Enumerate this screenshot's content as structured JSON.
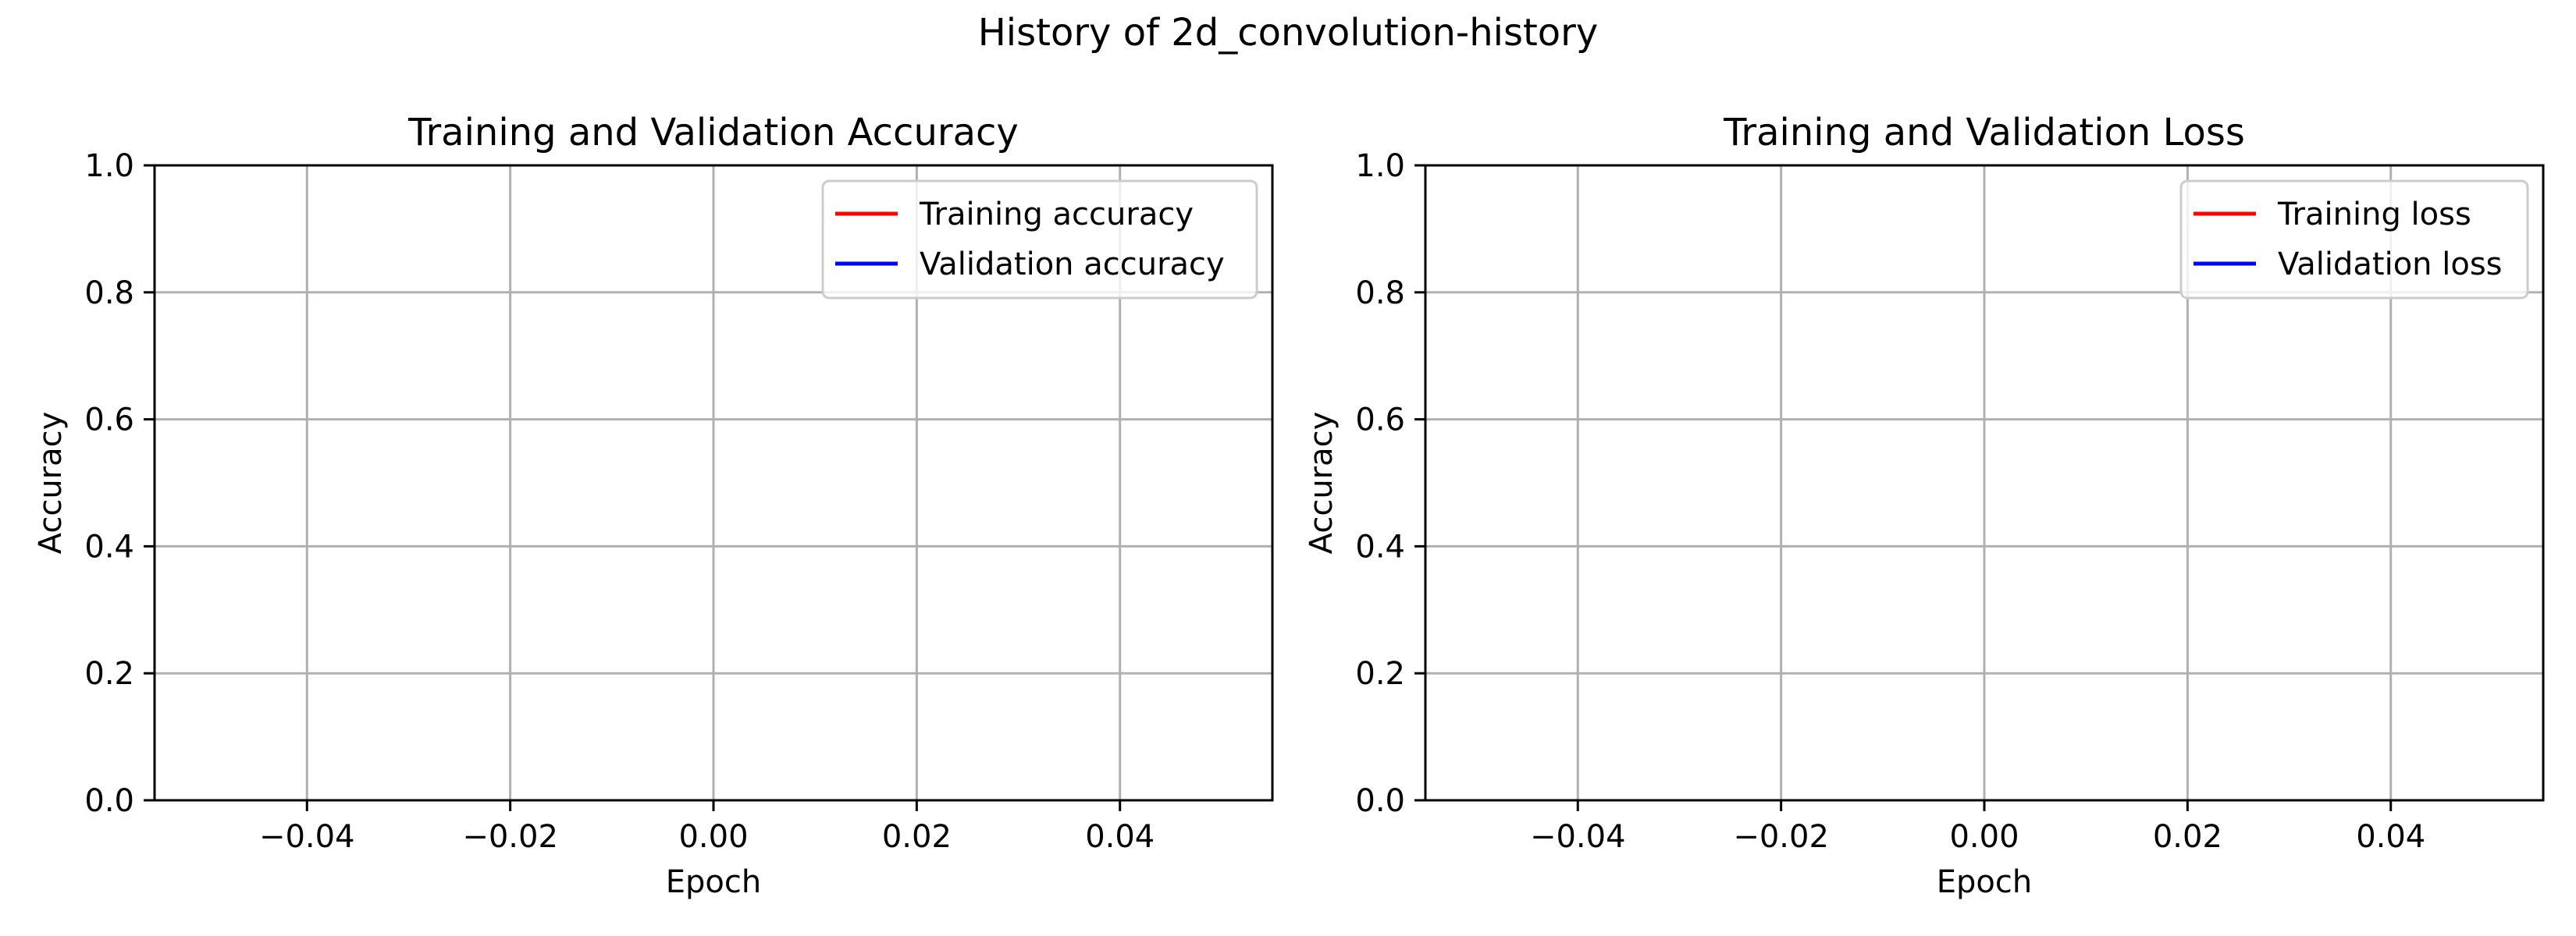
{
  "figure": {
    "suptitle": "History of 2d_convolution-history"
  },
  "chart_data": [
    {
      "type": "line",
      "title": "Training and Validation Accuracy",
      "xlabel": "Epoch",
      "ylabel": "Accuracy",
      "xlim": [
        -0.055,
        0.055
      ],
      "ylim": [
        0.0,
        1.0
      ],
      "xticks": [
        -0.04,
        -0.02,
        0.0,
        0.02,
        0.04
      ],
      "xtick_labels": [
        "−0.04",
        "−0.02",
        "0.00",
        "0.02",
        "0.04"
      ],
      "yticks": [
        0.0,
        0.2,
        0.4,
        0.6,
        0.8,
        1.0
      ],
      "ytick_labels": [
        "0.0",
        "0.2",
        "0.4",
        "0.6",
        "0.8",
        "1.0"
      ],
      "grid": true,
      "legend_position": "top-right",
      "series": [
        {
          "name": "Training accuracy",
          "color": "#ff0000",
          "x": [],
          "y": []
        },
        {
          "name": "Validation accuracy",
          "color": "#0000ff",
          "x": [],
          "y": []
        }
      ]
    },
    {
      "type": "line",
      "title": "Training and Validation Loss",
      "xlabel": "Epoch",
      "ylabel": "Accuracy",
      "xlim": [
        -0.055,
        0.055
      ],
      "ylim": [
        0.0,
        1.0
      ],
      "xticks": [
        -0.04,
        -0.02,
        0.0,
        0.02,
        0.04
      ],
      "xtick_labels": [
        "−0.04",
        "−0.02",
        "0.00",
        "0.02",
        "0.04"
      ],
      "yticks": [
        0.0,
        0.2,
        0.4,
        0.6,
        0.8,
        1.0
      ],
      "ytick_labels": [
        "0.0",
        "0.2",
        "0.4",
        "0.6",
        "0.8",
        "1.0"
      ],
      "grid": true,
      "legend_position": "top-right",
      "series": [
        {
          "name": "Training loss",
          "color": "#ff0000",
          "x": [],
          "y": []
        },
        {
          "name": "Validation loss",
          "color": "#0000ff",
          "x": [],
          "y": []
        }
      ]
    }
  ]
}
